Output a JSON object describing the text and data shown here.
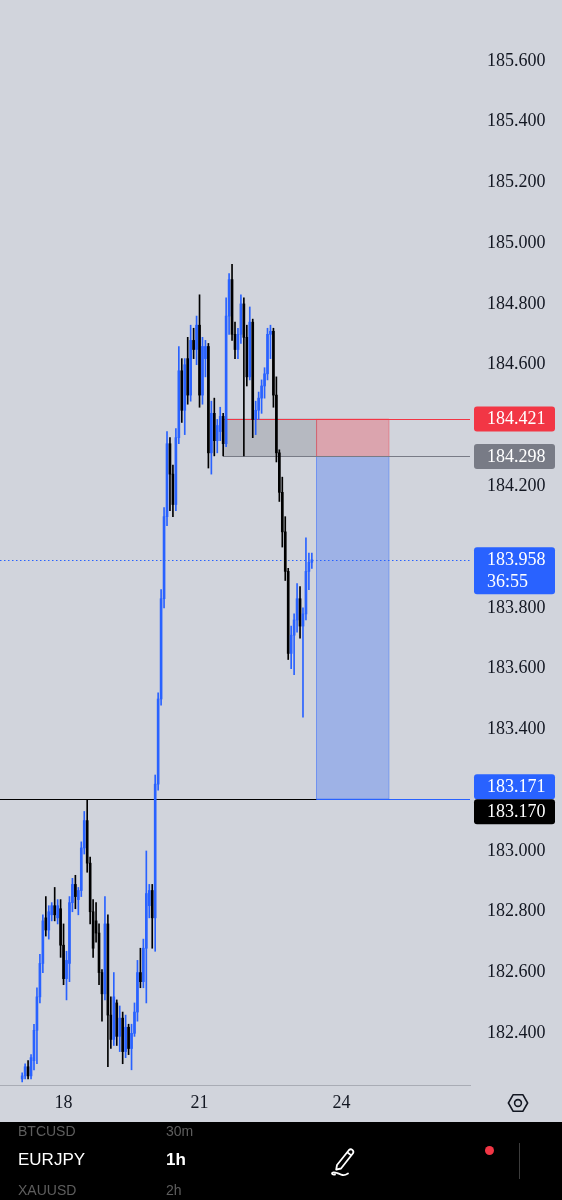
{
  "chart_data": {
    "type": "candlestick",
    "title": "EURJPY",
    "subtitle": "1h",
    "annotations": [
      "BTCUSD",
      "30m",
      "XAUUSD",
      "2h"
    ],
    "categories": [
      null,
      null,
      null,
      null,
      null,
      null,
      null,
      null,
      null,
      null,
      null,
      null,
      null,
      null,
      null,
      null,
      null,
      null,
      null,
      null,
      null,
      "18",
      null,
      null,
      null,
      null,
      null,
      null,
      null,
      null,
      null,
      null,
      null,
      null,
      null,
      null,
      null,
      null,
      null,
      null,
      null,
      null,
      null,
      null,
      null,
      null,
      null,
      null,
      null,
      null,
      null,
      null,
      null,
      null,
      null,
      null,
      null,
      null,
      null,
      null,
      null,
      null,
      null,
      null,
      null,
      null,
      null,
      "21",
      null,
      null,
      null,
      null,
      null,
      null,
      null,
      null,
      null,
      null,
      null,
      null,
      null,
      null,
      null,
      null,
      null,
      null,
      null,
      null,
      null,
      null,
      null,
      null,
      null,
      null,
      null,
      null,
      null,
      null,
      null,
      null,
      null,
      null,
      null,
      null,
      null,
      null,
      null,
      null,
      null,
      null,
      null,
      null,
      null,
      null,
      null,
      "24",
      null,
      null,
      null,
      null,
      null,
      null,
      null,
      null,
      null,
      null,
      null,
      null,
      null,
      null,
      null,
      null,
      null,
      null,
      null,
      null,
      null,
      null,
      null,
      null,
      null,
      null,
      null,
      null,
      null,
      null,
      null,
      null,
      null,
      null,
      null,
      null,
      null,
      null,
      null,
      null,
      null,
      null,
      null
    ],
    "ohlc": [
      null,
      null,
      null,
      null,
      null,
      null,
      null,
      [
        182.25,
        182.27,
        182.24,
        182.26
      ],
      [
        182.26,
        182.3,
        182.25,
        182.29
      ],
      [
        182.29,
        182.31,
        182.25,
        182.26
      ],
      [
        182.26,
        182.33,
        182.25,
        182.32
      ],
      [
        182.31,
        182.43,
        182.28,
        182.41
      ],
      [
        182.41,
        182.55,
        182.3,
        182.52
      ],
      [
        182.52,
        182.66,
        182.5,
        182.63
      ],
      [
        182.63,
        182.79,
        182.6,
        182.77
      ],
      [
        182.78,
        182.85,
        182.72,
        182.74
      ],
      [
        182.74,
        182.82,
        182.71,
        182.8
      ],
      [
        182.79,
        182.83,
        182.77,
        182.82
      ],
      [
        182.82,
        182.88,
        182.77,
        182.79
      ],
      [
        182.78,
        182.84,
        182.76,
        182.82
      ],
      [
        182.81,
        182.84,
        182.65,
        182.69
      ],
      [
        182.69,
        182.76,
        182.56,
        182.58
      ],
      [
        182.58,
        182.67,
        182.51,
        182.64
      ],
      [
        182.63,
        182.85,
        182.57,
        182.83
      ],
      [
        182.83,
        182.91,
        182.8,
        182.89
      ],
      [
        182.89,
        182.92,
        182.81,
        182.85
      ],
      [
        182.84,
        182.88,
        182.79,
        182.87
      ],
      [
        182.87,
        183.03,
        182.85,
        183.01
      ],
      [
        183.01,
        183.13,
        182.99,
        183.1
      ],
      [
        183.1,
        183.17,
        182.93,
        182.96
      ],
      [
        182.96,
        182.98,
        182.76,
        182.8
      ],
      [
        182.8,
        182.84,
        182.65,
        182.68
      ],
      [
        182.77,
        182.83,
        182.7,
        182.73
      ],
      [
        182.73,
        182.76,
        182.56,
        182.6
      ],
      [
        182.6,
        182.61,
        182.44,
        182.53
      ],
      [
        182.53,
        182.85,
        182.51,
        182.76
      ],
      [
        182.76,
        182.79,
        182.29,
        182.46
      ],
      [
        182.46,
        182.52,
        182.35,
        182.38
      ],
      [
        182.38,
        182.6,
        182.36,
        182.52
      ],
      [
        182.5,
        182.51,
        182.36,
        182.39
      ],
      [
        182.39,
        182.49,
        182.34,
        182.45
      ],
      [
        182.45,
        182.47,
        182.3,
        182.34
      ],
      [
        182.34,
        182.46,
        182.32,
        182.42
      ],
      [
        182.42,
        182.43,
        182.33,
        182.35
      ],
      [
        182.35,
        182.43,
        182.28,
        182.4
      ],
      [
        182.4,
        182.5,
        182.39,
        182.47
      ],
      [
        182.47,
        182.64,
        182.44,
        182.6
      ],
      [
        182.6,
        182.68,
        182.55,
        182.57
      ],
      [
        182.57,
        182.71,
        182.55,
        182.68
      ],
      [
        182.68,
        183.0,
        182.5,
        182.86
      ],
      [
        182.82,
        182.89,
        182.78,
        182.87
      ],
      [
        182.87,
        182.89,
        182.68,
        182.78
      ],
      [
        182.78,
        183.25,
        182.67,
        183.22
      ],
      [
        183.22,
        183.52,
        183.2,
        183.5
      ],
      [
        183.5,
        183.86,
        183.48,
        183.83
      ],
      [
        183.83,
        184.13,
        183.8,
        184.1
      ],
      [
        184.1,
        184.38,
        184.07,
        184.34
      ],
      [
        184.34,
        184.36,
        184.12,
        184.24
      ],
      [
        184.24,
        184.27,
        184.1,
        184.14
      ],
      [
        184.14,
        184.39,
        184.12,
        184.36
      ],
      [
        184.36,
        184.66,
        184.34,
        184.58
      ],
      [
        184.58,
        184.62,
        184.41,
        184.45
      ],
      [
        184.45,
        184.62,
        184.37,
        184.6
      ],
      [
        184.62,
        184.69,
        184.47,
        184.5
      ],
      [
        184.5,
        184.73,
        184.48,
        184.68
      ],
      [
        184.68,
        184.72,
        184.62,
        184.65
      ],
      [
        184.65,
        184.76,
        184.6,
        184.73
      ],
      [
        184.73,
        184.83,
        184.46,
        184.5
      ],
      [
        184.5,
        184.69,
        184.47,
        184.66
      ],
      [
        184.62,
        184.68,
        184.56,
        184.66
      ],
      [
        184.66,
        184.67,
        184.26,
        184.31
      ],
      [
        184.31,
        184.48,
        184.24,
        184.44
      ],
      [
        184.44,
        184.49,
        184.3,
        184.35
      ],
      [
        184.35,
        184.42,
        184.31,
        184.4
      ],
      [
        184.38,
        184.46,
        184.35,
        184.43
      ],
      [
        184.43,
        184.44,
        184.3,
        184.34
      ],
      [
        184.34,
        184.82,
        184.33,
        184.76
      ],
      [
        184.76,
        184.9,
        184.7,
        184.88
      ],
      [
        184.88,
        184.93,
        184.68,
        184.7
      ],
      [
        184.7,
        184.74,
        184.62,
        184.65
      ],
      [
        184.65,
        184.72,
        184.62,
        184.7
      ],
      [
        184.7,
        184.83,
        184.67,
        184.8
      ],
      [
        184.8,
        184.82,
        184.3,
        184.69
      ],
      [
        184.69,
        184.73,
        184.53,
        184.56
      ],
      [
        184.56,
        184.79,
        184.55,
        184.74
      ],
      [
        184.74,
        184.75,
        184.36,
        184.42
      ],
      [
        184.42,
        184.48,
        184.37,
        184.45
      ],
      [
        184.45,
        184.51,
        184.42,
        184.49
      ],
      [
        184.49,
        184.55,
        184.44,
        184.53
      ],
      [
        184.53,
        184.59,
        184.49,
        184.57
      ],
      [
        184.57,
        184.72,
        184.55,
        184.7
      ],
      [
        184.7,
        184.73,
        184.62,
        184.71
      ],
      [
        184.71,
        184.72,
        184.46,
        184.5
      ],
      [
        184.5,
        184.56,
        184.28,
        184.31
      ],
      [
        184.31,
        184.32,
        184.15,
        184.18
      ],
      [
        184.18,
        184.23,
        184.0,
        184.05
      ],
      [
        184.05,
        184.1,
        183.89,
        183.92
      ],
      [
        183.92,
        183.93,
        183.63,
        183.65
      ],
      [
        183.65,
        183.74,
        183.6,
        183.71
      ],
      [
        183.71,
        183.78,
        183.58,
        183.76
      ],
      [
        183.76,
        183.88,
        183.72,
        183.83
      ],
      [
        183.83,
        183.87,
        183.7,
        183.74
      ],
      [
        183.74,
        183.8,
        183.44,
        183.78
      ],
      [
        183.78,
        184.03,
        183.76,
        183.92
      ],
      [
        183.92,
        183.98,
        183.86,
        183.95
      ],
      [
        183.95,
        183.98,
        183.93,
        183.958
      ],
      null,
      null,
      null,
      null,
      null,
      null,
      null,
      null,
      null,
      null,
      null,
      null,
      null,
      null,
      null,
      null,
      null,
      null,
      null,
      null,
      null,
      null,
      null,
      null,
      null,
      null,
      null,
      null,
      null,
      null,
      null,
      null,
      null,
      null,
      null,
      null,
      null,
      null,
      null,
      null,
      null,
      null,
      null,
      null,
      null,
      null,
      null,
      null,
      null,
      null,
      null,
      null,
      null
    ],
    "colors": [
      null,
      null,
      null,
      null,
      null,
      null,
      null,
      "#2962ff",
      "#2962ff",
      "#000000",
      "#2962ff",
      "#2962ff",
      "#2962ff",
      "#2962ff",
      "#2962ff",
      "#000000",
      "#2962ff",
      "#2962ff",
      "#000000",
      "#2962ff",
      "#000000",
      "#000000",
      "#2962ff",
      "#2962ff",
      "#2962ff",
      "#000000",
      "#2962ff",
      "#2962ff",
      "#2962ff",
      "#000000",
      "#000000",
      "#000000",
      "#000000",
      "#000000",
      "#000000",
      "#2962ff",
      "#000000",
      "#000000",
      "#2962ff",
      "#000000",
      "#2962ff",
      "#000000",
      "#2962ff",
      "#000000",
      "#2962ff",
      "#2962ff",
      "#2962ff",
      "#000000",
      "#2962ff",
      "#2962ff",
      "#2962ff",
      "#000000",
      "#2962ff",
      "#2962ff",
      "#2962ff",
      "#2962ff",
      "#2962ff",
      "#000000",
      "#000000",
      "#2962ff",
      "#2962ff",
      "#000000",
      "#2962ff",
      "#000000",
      "#2962ff",
      "#000000",
      "#2962ff",
      "#000000",
      "#2962ff",
      "#2962ff",
      "#000000",
      "#2962ff",
      "#000000",
      "#2962ff",
      "#2962ff",
      "#000000",
      "#2962ff",
      "#2962ff",
      "#000000",
      "#000000",
      "#2962ff",
      "#2962ff",
      "#000000",
      "#000000",
      "#2962ff",
      "#000000",
      "#2962ff",
      "#2962ff",
      "#2962ff",
      "#2962ff",
      "#2962ff",
      "#2962ff",
      "#000000",
      "#000000",
      "#000000",
      "#000000",
      "#000000",
      "#000000",
      "#2962ff",
      "#2962ff",
      "#2962ff",
      "#000000",
      "#2962ff",
      "#2962ff",
      "#2962ff",
      "#2962ff",
      null,
      null,
      null,
      null,
      null,
      null,
      null,
      null,
      null,
      null,
      null,
      null,
      null,
      null,
      null,
      null,
      null,
      null,
      null,
      null,
      null,
      null,
      null,
      null,
      null,
      null,
      null,
      null,
      null,
      null,
      null,
      null,
      null,
      null,
      null,
      null,
      null,
      null,
      null,
      null,
      null,
      null,
      null,
      null,
      null,
      null,
      null,
      null,
      null,
      null,
      null,
      null,
      null
    ],
    "ylim": [
      182.23,
      185.8
    ],
    "yticks": [
      {
        "value": 185.6,
        "label": "185.600"
      },
      {
        "value": 185.4,
        "label": "185.400"
      },
      {
        "value": 185.2,
        "label": "185.200"
      },
      {
        "value": 185.0,
        "label": "185.000"
      },
      {
        "value": 184.8,
        "label": "184.800"
      },
      {
        "value": 184.6,
        "label": "184.600"
      },
      {
        "value": 184.2,
        "label": "184.200"
      },
      {
        "value": 183.8,
        "label": "183.800"
      },
      {
        "value": 183.6,
        "label": "183.600"
      },
      {
        "value": 183.4,
        "label": "183.400"
      },
      {
        "value": 183.0,
        "label": "183.000"
      },
      {
        "value": 182.8,
        "label": "182.800"
      },
      {
        "value": 182.6,
        "label": "182.600"
      },
      {
        "value": 182.4,
        "label": "182.400"
      }
    ],
    "ref_lines": [
      {
        "axis": "y",
        "value": 184.421,
        "label": "184.421",
        "color": "#f23645"
      },
      {
        "axis": "y",
        "value": 184.298,
        "label": "184.298",
        "color": "#787b86"
      },
      {
        "axis": "y",
        "value": 183.958,
        "label": "183.958\n36:55",
        "color": "#2962ff",
        "line_style": "dotted"
      },
      {
        "axis": "y",
        "value": 183.171,
        "label": "183.171",
        "color": "#2962ff"
      },
      {
        "axis": "y",
        "value": 183.17,
        "label": "183.170",
        "color": "#000000",
        "line_style": "solid"
      }
    ],
    "bands": [
      {
        "axis": "y",
        "from": 184.298,
        "to": 184.421,
        "color": "#787b86"
      },
      {
        "axis": "y",
        "from": 184.298,
        "to": 184.421,
        "color": "#f23645"
      },
      {
        "axis": "y",
        "from": 183.171,
        "to": 184.298,
        "color": "#2962ff"
      }
    ]
  }
}
